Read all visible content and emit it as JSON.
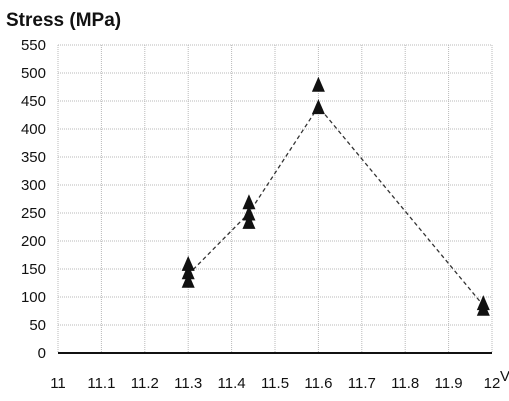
{
  "chart_data": {
    "type": "scatter",
    "title": "",
    "ylabel": "Stress (MPa)",
    "xlabel": "V",
    "xlim": [
      11,
      12
    ],
    "ylim": [
      0,
      550
    ],
    "xticks": [
      "11",
      "11.1",
      "11.2",
      "11.3",
      "11.4",
      "11.5",
      "11.6",
      "11.7",
      "11.8",
      "11.9",
      "12"
    ],
    "yticks": [
      "0",
      "50",
      "100",
      "150",
      "200",
      "250",
      "300",
      "350",
      "400",
      "450",
      "500",
      "550"
    ],
    "grid": true,
    "series": [
      {
        "points": [
          {
            "x": 11.3,
            "y": 130
          },
          {
            "x": 11.3,
            "y": 145
          },
          {
            "x": 11.3,
            "y": 160
          },
          {
            "x": 11.44,
            "y": 235
          },
          {
            "x": 11.44,
            "y": 250
          },
          {
            "x": 11.44,
            "y": 270
          },
          {
            "x": 11.6,
            "y": 440
          },
          {
            "x": 11.6,
            "y": 480
          },
          {
            "x": 11.98,
            "y": 80
          },
          {
            "x": 11.98,
            "y": 90
          }
        ]
      }
    ],
    "trend_line": [
      {
        "x": 11.3,
        "y": 140
      },
      {
        "x": 11.44,
        "y": 250
      },
      {
        "x": 11.6,
        "y": 440
      },
      {
        "x": 11.98,
        "y": 85
      }
    ],
    "colors": {
      "marker": "#111111",
      "grid": "#b9b9b9",
      "axis": "#111111"
    }
  }
}
